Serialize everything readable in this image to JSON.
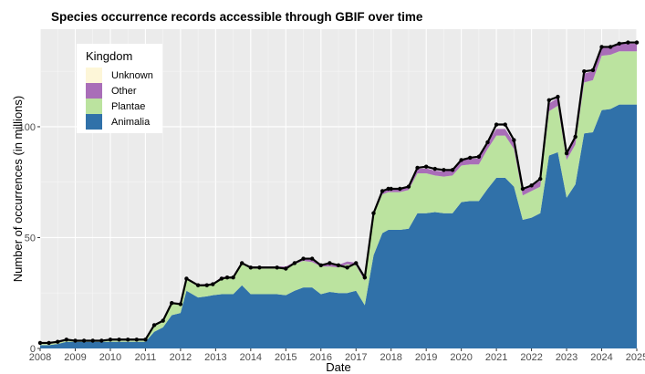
{
  "chart_data": {
    "type": "area",
    "title": "Species occurrence records accessible through GBIF over time",
    "xlabel": "Date",
    "ylabel": "Number of occurrences (in millions)",
    "xlim": [
      2008.0,
      2025.0
    ],
    "ylim": [
      0,
      144
    ],
    "x_ticks": [
      2008,
      2009,
      2010,
      2011,
      2012,
      2013,
      2014,
      2015,
      2016,
      2017,
      2018,
      2019,
      2020,
      2021,
      2022,
      2023,
      2024,
      2025
    ],
    "y_ticks": [
      0,
      50,
      100
    ],
    "grid": true,
    "stacked": true,
    "legend": {
      "title": "Kingdom",
      "placement": "top-left",
      "entries": [
        "Unknown",
        "Other",
        "Plantae",
        "Animalia"
      ]
    },
    "x": [
      2008.0,
      2008.25,
      2008.5,
      2008.75,
      2009.0,
      2009.25,
      2009.5,
      2009.75,
      2010.0,
      2010.25,
      2010.5,
      2010.75,
      2011.0,
      2011.25,
      2011.5,
      2011.75,
      2012.0,
      2012.17,
      2012.5,
      2012.75,
      2012.92,
      2013.17,
      2013.33,
      2013.5,
      2013.75,
      2014.0,
      2014.25,
      2014.75,
      2015.0,
      2015.25,
      2015.5,
      2015.75,
      2016.0,
      2016.25,
      2016.5,
      2016.75,
      2017.0,
      2017.25,
      2017.5,
      2017.75,
      2017.92,
      2018.0,
      2018.25,
      2018.5,
      2018.75,
      2019.0,
      2019.25,
      2019.5,
      2019.75,
      2020.0,
      2020.25,
      2020.5,
      2020.75,
      2021.0,
      2021.25,
      2021.5,
      2021.75,
      2022.0,
      2022.25,
      2022.5,
      2022.75,
      2023.0,
      2023.25,
      2023.5,
      2023.75,
      2024.0,
      2024.25,
      2024.5,
      2024.75,
      2025.0
    ],
    "series": [
      {
        "name": "Animalia",
        "color": "#3071a9",
        "values": [
          1.5,
          1.5,
          2,
          3,
          3,
          3,
          3,
          3,
          3,
          3,
          3,
          3,
          3,
          7.5,
          9.5,
          15,
          16,
          26,
          23,
          23.5,
          24,
          24.5,
          24.5,
          24.5,
          28.5,
          24.5,
          24.5,
          24.5,
          24,
          26,
          27.5,
          27.5,
          24.5,
          25.5,
          25,
          25,
          26,
          19.5,
          42,
          52,
          53.5,
          53.5,
          53.5,
          54,
          61,
          61,
          61.5,
          61,
          61,
          66,
          66.5,
          66.5,
          72,
          77,
          77,
          73,
          58,
          59,
          61,
          87,
          88.5,
          68,
          74,
          97,
          97.5,
          107.5,
          108,
          110,
          110,
          110
        ]
      },
      {
        "name": "Plantae",
        "color": "#bbe39f",
        "values": [
          0.5,
          0.5,
          0.5,
          0.5,
          0.5,
          0.5,
          0.5,
          0.5,
          0.5,
          0.5,
          0.5,
          0.5,
          0.5,
          2.5,
          2.5,
          5,
          4,
          5,
          5,
          5,
          4.5,
          7,
          7,
          7,
          9.5,
          11.5,
          11.5,
          11.5,
          12,
          12,
          12,
          11.5,
          12.5,
          11.5,
          11.5,
          13,
          11.5,
          11,
          18,
          17.5,
          17,
          17,
          17,
          17.5,
          18,
          18,
          16.5,
          16.5,
          17,
          16.5,
          16.5,
          16.5,
          18,
          19,
          19,
          17,
          11,
          12,
          12,
          20,
          21,
          17,
          18,
          23,
          23.5,
          24.5,
          24.5,
          24,
          24,
          24
        ]
      },
      {
        "name": "Other",
        "color": "#a96eb8",
        "values": [
          0.1,
          0.1,
          0.1,
          0.2,
          0.2,
          0.2,
          0.2,
          0.3,
          0.3,
          0.3,
          0.3,
          0.3,
          0.3,
          0.3,
          0.4,
          0.5,
          0.6,
          0.6,
          0.7,
          0.7,
          0.7,
          0.8,
          0.8,
          0.8,
          0.8,
          1,
          1,
          1,
          1,
          1,
          1.1,
          1.1,
          1.1,
          1.2,
          1.2,
          1.2,
          1.2,
          1.3,
          1.5,
          1.5,
          1.7,
          1.7,
          1.7,
          1.8,
          2,
          2.2,
          2.2,
          2.3,
          2.4,
          2.5,
          2.6,
          2.7,
          3,
          3,
          3,
          2.8,
          2.5,
          2.5,
          2.6,
          3.5,
          3.5,
          2.5,
          3,
          4,
          4,
          3.5,
          3.5,
          3.5,
          3.5,
          3.5
        ]
      },
      {
        "name": "Unknown",
        "color": "#fdf6d8",
        "values": [
          0,
          0,
          0,
          0,
          0,
          0,
          0,
          0,
          0,
          0,
          0,
          0,
          0,
          0,
          0,
          0,
          0,
          0,
          0,
          0,
          0,
          0,
          0,
          0,
          0,
          0,
          0,
          0,
          0,
          0,
          0,
          0,
          0,
          0,
          0,
          0,
          0,
          0,
          0,
          0,
          0,
          0,
          0,
          0,
          0,
          0,
          0,
          0,
          0,
          0,
          0,
          0,
          0,
          0,
          0,
          0,
          0,
          0,
          0,
          0,
          0,
          0,
          0,
          0,
          0,
          0,
          0,
          0,
          0,
          0
        ]
      }
    ],
    "total": {
      "color": "#000000",
      "values": [
        2.5,
        2.5,
        3,
        4,
        3.5,
        3.5,
        3.5,
        3.5,
        4,
        4,
        4,
        4,
        4,
        10.5,
        12.5,
        20.5,
        20,
        31.5,
        28.5,
        28.5,
        29,
        31.5,
        32,
        32,
        38.5,
        36.5,
        36.5,
        36.5,
        36,
        38.5,
        40.5,
        40.5,
        37.5,
        38.5,
        37.5,
        36.5,
        38.5,
        32,
        61,
        71,
        72,
        72,
        72,
        73,
        81.5,
        82,
        81,
        80.5,
        80.5,
        85,
        86,
        86.5,
        93,
        101,
        101,
        94,
        72,
        73.5,
        76.5,
        112,
        113.5,
        88,
        95.5,
        125,
        125.5,
        136,
        136,
        137.5,
        138,
        138
      ]
    }
  }
}
